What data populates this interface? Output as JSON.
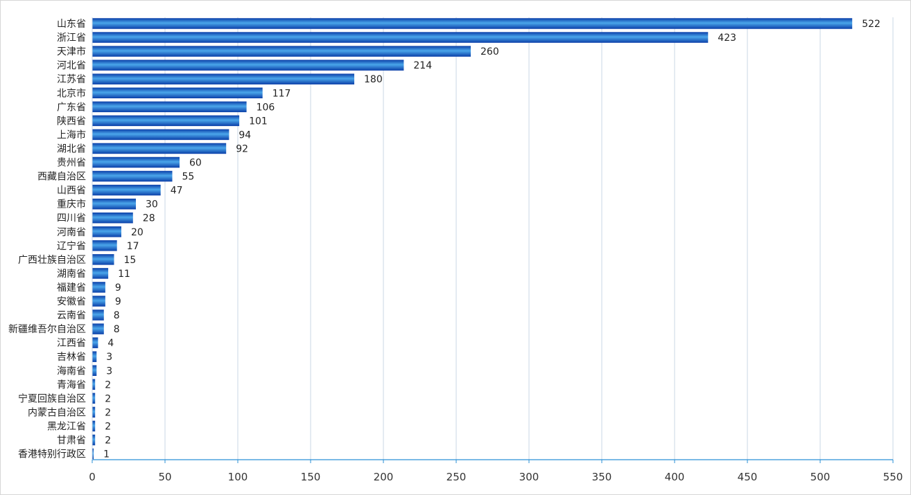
{
  "chart_data": {
    "type": "bar",
    "orientation": "horizontal",
    "categories": [
      "山东省",
      "浙江省",
      "天津市",
      "河北省",
      "江苏省",
      "北京市",
      "广东省",
      "陕西省",
      "上海市",
      "湖北省",
      "贵州省",
      "西藏自治区",
      "山西省",
      "重庆市",
      "四川省",
      "河南省",
      "辽宁省",
      "广西壮族自治区",
      "湖南省",
      "福建省",
      "安徽省",
      "云南省",
      "新疆维吾尔自治区",
      "江西省",
      "吉林省",
      "海南省",
      "青海省",
      "宁夏回族自治区",
      "内蒙古自治区",
      "黑龙江省",
      "甘肃省",
      "香港特别行政区"
    ],
    "values": [
      522,
      423,
      260,
      214,
      180,
      117,
      106,
      101,
      94,
      92,
      60,
      55,
      47,
      30,
      28,
      20,
      17,
      15,
      11,
      9,
      9,
      8,
      8,
      4,
      3,
      3,
      2,
      2,
      2,
      2,
      2,
      1
    ],
    "xlim": [
      0,
      550
    ],
    "x_ticks": [
      0,
      50,
      100,
      150,
      200,
      250,
      300,
      350,
      400,
      450,
      500,
      550
    ],
    "grid": "vertical",
    "data_labels": true,
    "bar_color_dark": "#0b3fa8",
    "bar_color_light": "#4aa6ea",
    "grid_color": "#c9d7e6",
    "axis_color": "#2a8fd6"
  }
}
